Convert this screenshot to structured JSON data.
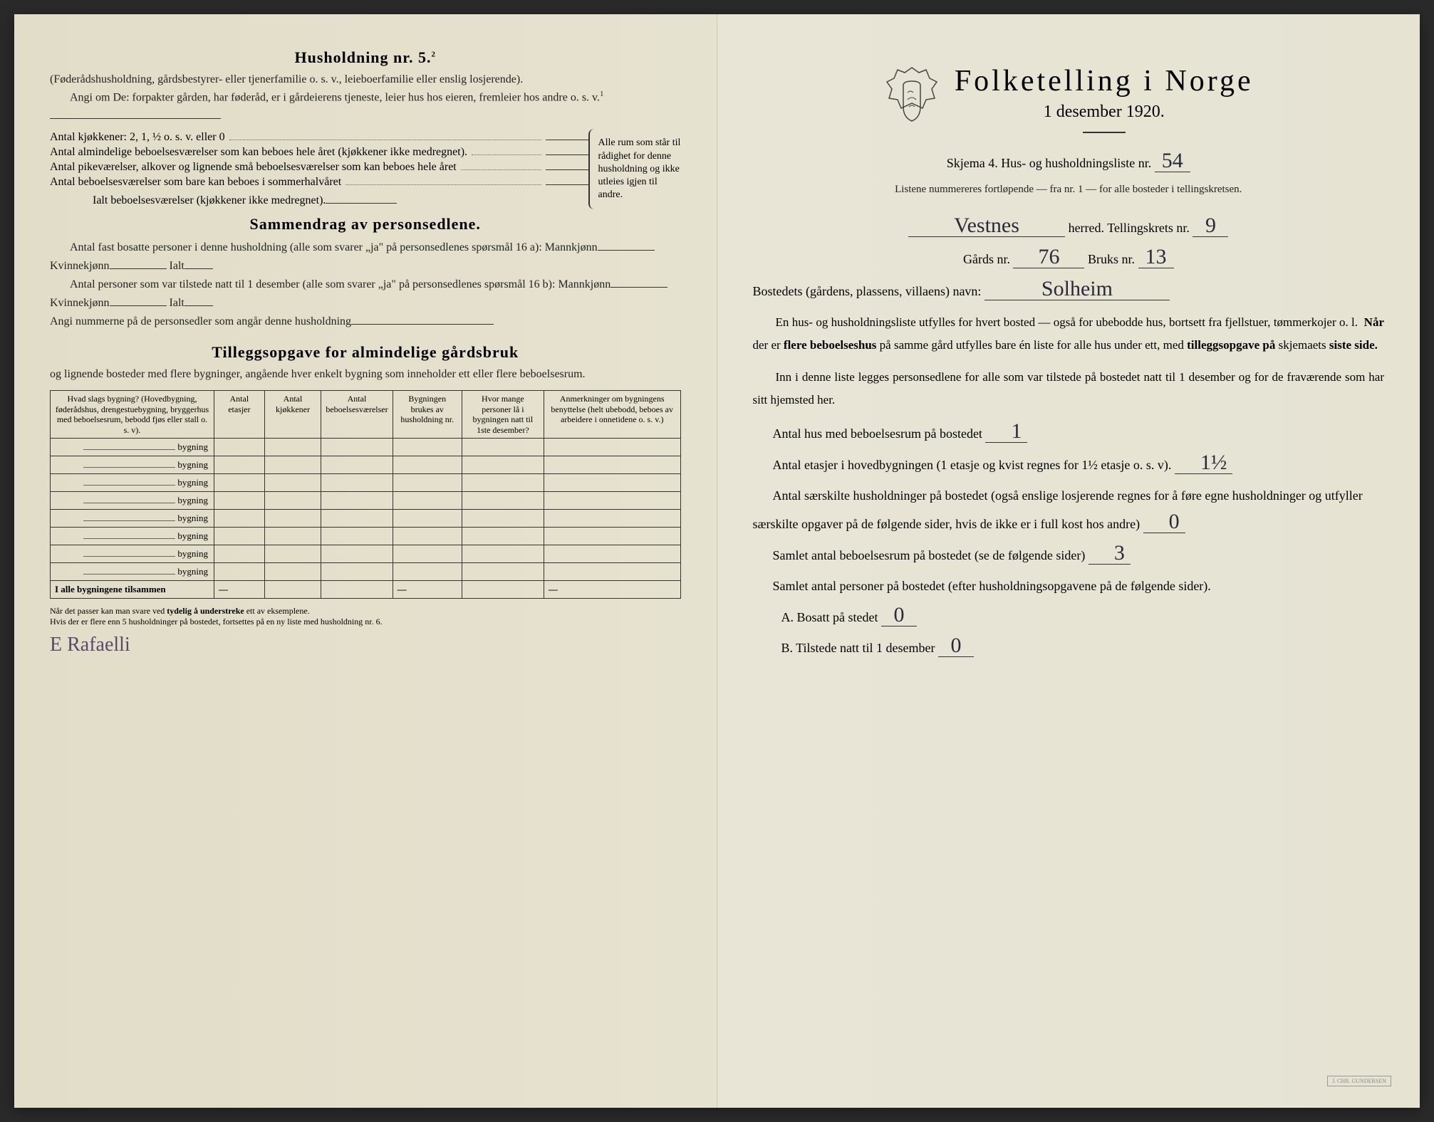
{
  "left": {
    "household_heading": "Husholdning nr. 5.",
    "household_sup": "2",
    "para1": "(Føderådshusholdning, gårdsbestyrer- eller tjenerfamilie o. s. v., leieboerfamilie eller enslig losjerende).",
    "para2": "Angi om De: forpakter gården, har føderåd, er i gårdeierens tjeneste, leier hus hos eieren, fremleier hos andre o. s. v.",
    "para2_sup": "1",
    "kitchen_line": "Antal kjøkkener: 2, 1, ½ o. s. v. eller 0",
    "room_lines": [
      "Antal almindelige beboelsesværelser som kan beboes hele året (kjøkkener ikke medregnet).",
      "Antal pikeværelser, alkover og lignende små beboelsesværelser som kan beboes hele året",
      "Antal beboelsesværelser som bare kan beboes i sommerhalvåret"
    ],
    "rooms_total": "Ialt beboelsesværelser (kjøkkener ikke medregnet).",
    "brace_text": "Alle rum som står til rådighet for denne husholdning og ikke utleies igjen til andre.",
    "summary_heading": "Sammendrag av personsedlene.",
    "summary_p1a": "Antal fast bosatte personer i denne husholdning (alle som svarer „ja\" på personsedlenes spørsmål 16 a): Mannkjønn",
    "summary_kvin": "Kvinnekjønn",
    "summary_ialt": "Ialt",
    "summary_p2a": "Antal personer som var tilstede natt til 1 desember (alle som svarer „ja\" på personsedlenes spørsmål 16 b): Mannkjønn",
    "summary_p3": "Angi nummerne på de personsedler som angår denne husholdning",
    "tillegg_heading": "Tilleggsopgave for almindelige gårdsbruk",
    "tillegg_intro": "og lignende bosteder med flere bygninger, angående hver enkelt bygning som inneholder ett eller flere beboelsesrum.",
    "table": {
      "headers": [
        "Hvad slags bygning?\n(Hovedbygning, føderådshus, drengestuebygning, bryggerhus med beboelsesrum, bebodd fjøs eller stall o. s. v).",
        "Antal etasjer",
        "Antal kjøkkener",
        "Antal beboelsesværelser",
        "Bygningen brukes av husholdning nr.",
        "Hvor mange personer lå i bygningen natt til 1ste desember?",
        "Anmerkninger om bygningens benyttelse (helt ubebodd, beboes av arbeidere i onnetidene o. s. v.)"
      ],
      "row_suffix": "bygning",
      "row_count": 8,
      "footer": "I alle bygningene tilsammen"
    },
    "footnote": "Når det passer kan man svare ved tydelig å understreke ett av eksemplene.\nHvis der er flere enn 5 husholdninger på bostedet, fortsettes på en ny liste med husholdning nr. 6.",
    "signature": "E Rafaelli"
  },
  "right": {
    "main_title": "Folketelling i Norge",
    "sub_title": "1 desember 1920.",
    "schema_line_a": "Skjema 4.   Hus- og husholdningsliste nr.",
    "schema_nr": "54",
    "schema_note": "Listene nummereres fortløpende — fra nr. 1 — for alle bosteder i tellingskretsen.",
    "herred_value": "Vestnes",
    "herred_label": "herred.   Tellingskrets nr.",
    "krets_nr": "9",
    "gards_label": "Gårds nr.",
    "gards_nr": "76",
    "bruks_label": "Bruks nr.",
    "bruks_nr": "13",
    "bosted_label": "Bostedets (gårdens, plassens, villaens) navn:",
    "bosted_value": "Solheim",
    "para1": "En hus- og husholdningsliste utfylles for hvert bosted — også for ubebodde hus, bortsett fra fjellstuer, tømmerkojer o. l.  Når der er flere beboelseshus på samme gård utfylles bare én liste for alle hus under ett, med tilleggsopgave på skjemaets siste side.",
    "para2": "Inn i denne liste legges personsedlene for alle som var tilstede på bostedet natt til 1 desember og for de fraværende som har sitt hjemsted her.",
    "q_hus": "Antal hus med beboelsesrum på bostedet",
    "a_hus": "1",
    "q_etasjer": "Antal etasjer i hovedbygningen (1 etasje og kvist regnes for 1½ etasje o. s. v).",
    "a_etasjer": "1½",
    "q_hush": "Antal særskilte husholdninger på bostedet (også enslige losjerende regnes for å føre egne husholdninger og utfyller særskilte opgaver på de følgende sider, hvis de ikke er i full kost hos andre)",
    "a_hush": "0",
    "q_rooms": "Samlet antal beboelsesrum på bostedet (se de følgende sider)",
    "a_rooms": "3",
    "q_persons": "Samlet antal personer på bostedet (efter husholdningsopgavene på de følgende sider).",
    "ans_a_label": "A.  Bosatt på stedet",
    "ans_a": "0",
    "ans_b_label": "B.  Tilstede natt til 1 desember",
    "ans_b": "0",
    "imprint": "J. CHR. GUNDERSEN"
  },
  "colors": {
    "paper": "#e8e4d4",
    "ink": "#222222",
    "handwriting": "#2a2a3a"
  }
}
